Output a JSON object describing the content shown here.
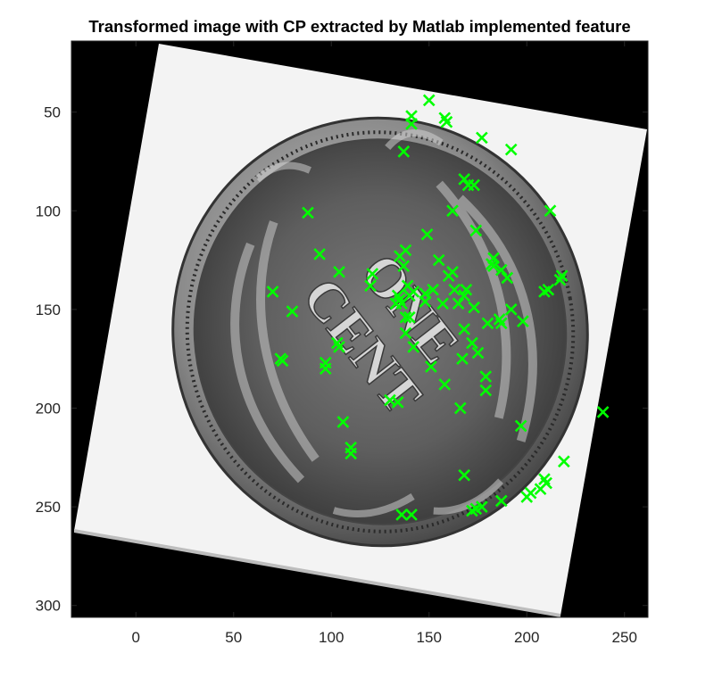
{
  "chart_data": {
    "type": "scatter",
    "title": "Transformed image with CP extracted by Matlab implemented feature",
    "xlabel": "",
    "ylabel": "",
    "xlim": [
      -33,
      262
    ],
    "ylim": [
      306,
      14
    ],
    "y_reversed": true,
    "grid": false,
    "background": "grayscale photograph of a rotated Indian Head one-cent coin on black background",
    "coin_text": [
      "ONE",
      "CENT"
    ],
    "x_ticks": [
      0,
      50,
      100,
      150,
      200,
      250
    ],
    "y_ticks": [
      50,
      100,
      150,
      200,
      250,
      300
    ],
    "x_tick_labels": [
      "0",
      "50",
      "100",
      "150",
      "200",
      "250"
    ],
    "y_tick_labels": [
      "50",
      "100",
      "150",
      "200",
      "250",
      "300"
    ],
    "series": [
      {
        "marker": "x",
        "color": "#00ff00",
        "points": [
          [
            150,
            44
          ],
          [
            141,
            52
          ],
          [
            141,
            56
          ],
          [
            158,
            53
          ],
          [
            159,
            55
          ],
          [
            177,
            63
          ],
          [
            192,
            69
          ],
          [
            137,
            70
          ],
          [
            168,
            84
          ],
          [
            170,
            87
          ],
          [
            173,
            87
          ],
          [
            88,
            101
          ],
          [
            162,
            100
          ],
          [
            212,
            100
          ],
          [
            174,
            110
          ],
          [
            149,
            112
          ],
          [
            94,
            122
          ],
          [
            135,
            123
          ],
          [
            138,
            120
          ],
          [
            137,
            128
          ],
          [
            155,
            125
          ],
          [
            183,
            124
          ],
          [
            183,
            128
          ],
          [
            182,
            127
          ],
          [
            104,
            131
          ],
          [
            121,
            132
          ],
          [
            162,
            131
          ],
          [
            160,
            133
          ],
          [
            187,
            130
          ],
          [
            190,
            134
          ],
          [
            218,
            133
          ],
          [
            217,
            135
          ],
          [
            211,
            140
          ],
          [
            209,
            141
          ],
          [
            70,
            141
          ],
          [
            120,
            138
          ],
          [
            139,
            138
          ],
          [
            142,
            141
          ],
          [
            152,
            140
          ],
          [
            169,
            140
          ],
          [
            168,
            143
          ],
          [
            134,
            143
          ],
          [
            135,
            145
          ],
          [
            140,
            143
          ],
          [
            148,
            142
          ],
          [
            148,
            146
          ],
          [
            157,
            147
          ],
          [
            163,
            140
          ],
          [
            165,
            147
          ],
          [
            133,
            147
          ],
          [
            136,
            147
          ],
          [
            80,
            151
          ],
          [
            173,
            149
          ],
          [
            192,
            150
          ],
          [
            180,
            157
          ],
          [
            186,
            155
          ],
          [
            187,
            157
          ],
          [
            198,
            156
          ],
          [
            138,
            154
          ],
          [
            140,
            154
          ],
          [
            138,
            162
          ],
          [
            168,
            160
          ],
          [
            172,
            167
          ],
          [
            103,
            167
          ],
          [
            104,
            169
          ],
          [
            142,
            169
          ],
          [
            167,
            175
          ],
          [
            175,
            172
          ],
          [
            74,
            175
          ],
          [
            75,
            176
          ],
          [
            97,
            177
          ],
          [
            97,
            180
          ],
          [
            151,
            179
          ],
          [
            179,
            184
          ],
          [
            158,
            188
          ],
          [
            179,
            191
          ],
          [
            130,
            196
          ],
          [
            134,
            197
          ],
          [
            166,
            200
          ],
          [
            239,
            202
          ],
          [
            106,
            207
          ],
          [
            197,
            209
          ],
          [
            110,
            220
          ],
          [
            110,
            223
          ],
          [
            219,
            227
          ],
          [
            168,
            234
          ],
          [
            209,
            236
          ],
          [
            210,
            238
          ],
          [
            207,
            241
          ],
          [
            202,
            243
          ],
          [
            200,
            245
          ],
          [
            187,
            247
          ],
          [
            177,
            250
          ],
          [
            172,
            252
          ],
          [
            174,
            251
          ],
          [
            136,
            254
          ],
          [
            141,
            254
          ]
        ]
      }
    ]
  }
}
